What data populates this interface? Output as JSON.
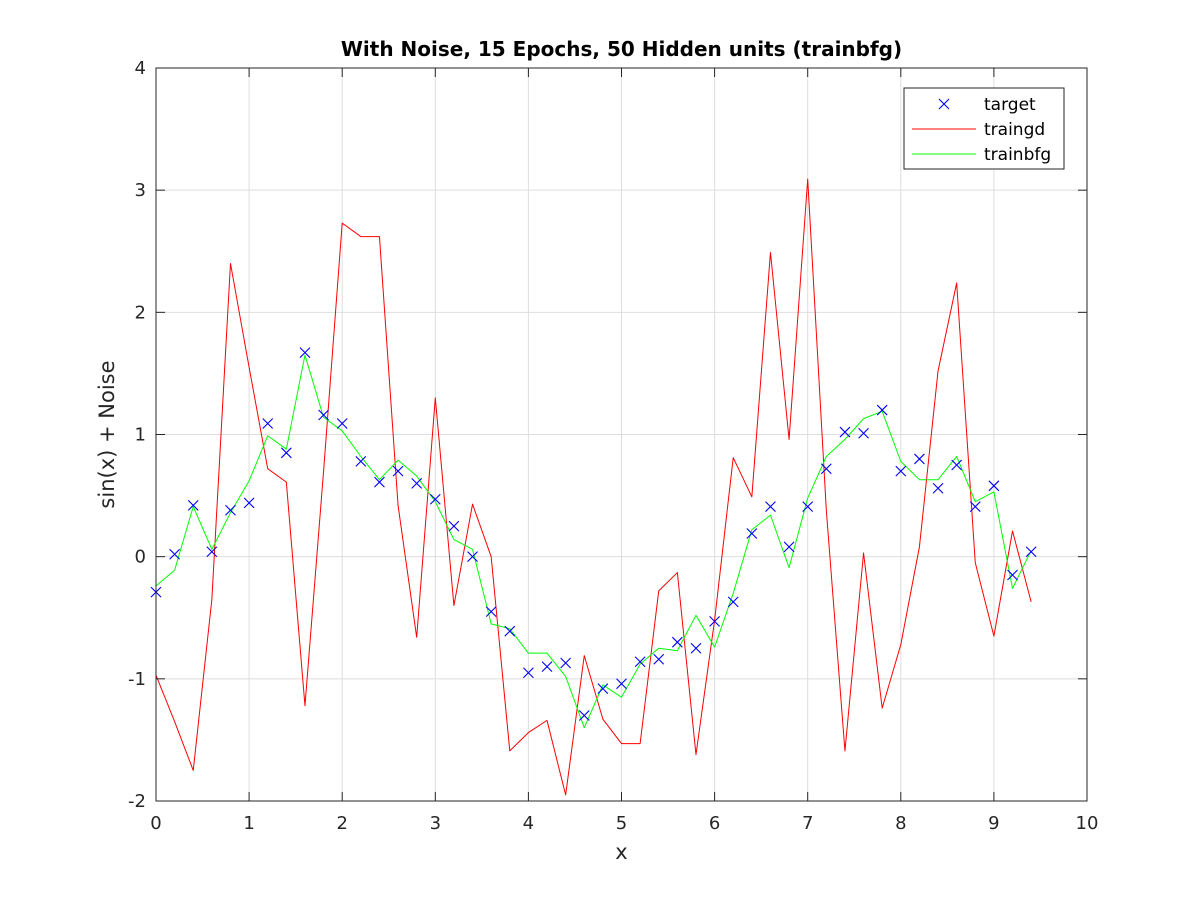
{
  "chart_data": {
    "type": "line",
    "title": "With Noise, 15 Epochs, 50 Hidden units (trainbfg)",
    "xlabel": "x",
    "ylabel": "sin(x) + Noise",
    "xlim": [
      0,
      10
    ],
    "ylim": [
      -2,
      4
    ],
    "xticks": [
      "0",
      "1",
      "2",
      "3",
      "4",
      "5",
      "6",
      "7",
      "8",
      "9",
      "10"
    ],
    "yticks": [
      "-2",
      "-1",
      "0",
      "1",
      "2",
      "3",
      "4"
    ],
    "grid": true,
    "legend_position": "top-right",
    "x": [
      0,
      0.2,
      0.4,
      0.6,
      0.8,
      1.0,
      1.2,
      1.4,
      1.6,
      1.8,
      2.0,
      2.2,
      2.4,
      2.6,
      2.8,
      3.0,
      3.2,
      3.4,
      3.6,
      3.8,
      4.0,
      4.2,
      4.4,
      4.6,
      4.8,
      5.0,
      5.2,
      5.4,
      5.6,
      5.8,
      6.0,
      6.2,
      6.4,
      6.6,
      6.8,
      7.0,
      7.2,
      7.4,
      7.6,
      7.8,
      8.0,
      8.2,
      8.4,
      8.6,
      8.8,
      9.0,
      9.2,
      9.4
    ],
    "series": [
      {
        "name": "target",
        "style": "marker-x",
        "color": "#0000ff",
        "values": [
          -0.29,
          0.02,
          0.42,
          0.04,
          0.38,
          0.44,
          1.09,
          0.85,
          1.67,
          1.16,
          1.09,
          0.78,
          0.61,
          0.7,
          0.6,
          0.47,
          0.25,
          0.0,
          -0.45,
          -0.61,
          -0.95,
          -0.9,
          -0.87,
          -1.3,
          -1.08,
          -1.04,
          -0.86,
          -0.84,
          -0.7,
          -0.75,
          -0.53,
          -0.37,
          0.19,
          0.41,
          0.08,
          0.41,
          0.72,
          1.02,
          1.01,
          1.2,
          0.7,
          0.8,
          0.56,
          0.75,
          0.41,
          0.58,
          -0.15,
          0.04
        ]
      },
      {
        "name": "traingd",
        "style": "line",
        "color": "#ff0000",
        "values": [
          -0.97,
          -1.35,
          -1.75,
          -0.35,
          2.4,
          1.55,
          0.72,
          0.61,
          -1.22,
          0.7,
          2.73,
          2.62,
          2.62,
          0.42,
          -0.66,
          1.3,
          -0.4,
          0.43,
          0.0,
          -1.59,
          -1.44,
          -1.34,
          -1.95,
          -0.81,
          -1.33,
          -1.53,
          -1.53,
          -0.28,
          -0.13,
          -1.62,
          -0.52,
          0.81,
          0.49,
          2.49,
          0.96,
          3.09,
          0.38,
          -1.59,
          0.03,
          -1.24,
          -0.72,
          0.08,
          1.52,
          2.24,
          -0.05,
          -0.65,
          0.21,
          -0.37
        ]
      },
      {
        "name": "trainbfg",
        "style": "line",
        "color": "#00ff00",
        "values": [
          -0.24,
          -0.11,
          0.41,
          0.06,
          0.36,
          0.62,
          0.99,
          0.88,
          1.65,
          1.14,
          1.03,
          0.82,
          0.63,
          0.79,
          0.66,
          0.45,
          0.14,
          0.06,
          -0.55,
          -0.59,
          -0.79,
          -0.79,
          -0.98,
          -1.4,
          -1.05,
          -1.15,
          -0.88,
          -0.75,
          -0.77,
          -0.48,
          -0.74,
          -0.3,
          0.22,
          0.34,
          -0.09,
          0.48,
          0.82,
          0.96,
          1.13,
          1.19,
          0.78,
          0.63,
          0.63,
          0.82,
          0.45,
          0.53,
          -0.26,
          0.05
        ]
      }
    ]
  }
}
